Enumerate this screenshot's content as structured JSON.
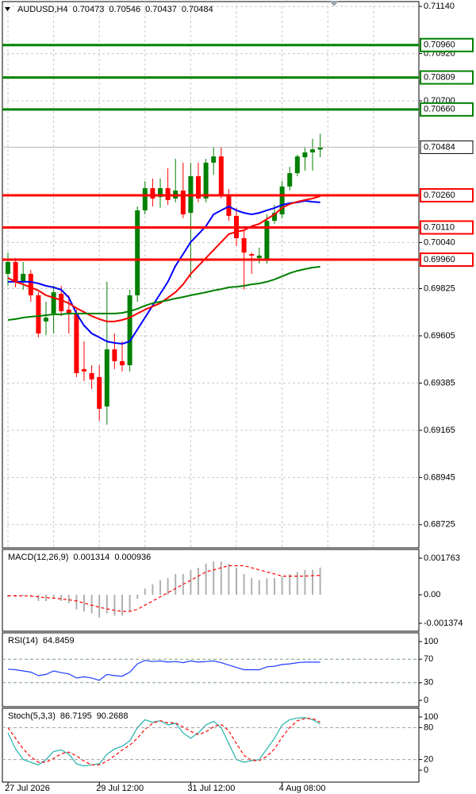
{
  "chart_data": [
    {
      "type": "candlestick",
      "title": "AUDUSD,H4",
      "categories": [
        "27 Jul 2026",
        null,
        null,
        null,
        null,
        null,
        null,
        null,
        null,
        null,
        null,
        null,
        "29 Jul 12:00",
        null,
        null,
        null,
        null,
        null,
        null,
        null,
        null,
        null,
        null,
        null,
        "31 Jul 12:00",
        null,
        null,
        null,
        null,
        null,
        null,
        null,
        null,
        null,
        null,
        null,
        "4 Aug 08:00",
        null,
        null,
        null,
        null,
        null
      ],
      "open": [
        0.69894,
        0.69949,
        0.69857,
        0.69894,
        0.69794,
        0.69672,
        0.69709,
        0.69801,
        0.69727,
        0.69709,
        0.6945,
        0.69431,
        0.69413,
        0.69276,
        0.69542,
        0.69487,
        0.69468,
        0.69794,
        0.7019,
        0.70293,
        0.70252,
        0.70293,
        0.70245,
        0.70282,
        0.70178,
        0.70349,
        0.70245,
        0.70412,
        0.70441,
        0.70264,
        0.70164,
        0.7006,
        0.69986,
        0.69968,
        0.69956,
        0.70141,
        0.70171,
        0.70301,
        0.70363,
        0.70437,
        0.7046,
        0.70473
      ],
      "high": [
        0.69993,
        0.69968,
        0.69949,
        0.69912,
        0.69808,
        0.69764,
        0.69838,
        0.69838,
        0.69794,
        0.69727,
        0.69579,
        0.69468,
        0.69468,
        0.69857,
        0.69616,
        0.69579,
        0.6982,
        0.70208,
        0.70326,
        0.70338,
        0.70338,
        0.70386,
        0.7043,
        0.70412,
        0.70412,
        0.70412,
        0.7043,
        0.70486,
        0.70486,
        0.70289,
        0.70201,
        0.70097,
        0.69993,
        0.70016,
        0.70171,
        0.70215,
        0.70326,
        0.70393,
        0.70449,
        0.70486,
        0.70523,
        0.70546
      ],
      "low": [
        0.69838,
        0.69831,
        0.6982,
        0.69764,
        0.69598,
        0.69609,
        0.69616,
        0.69697,
        0.69616,
        0.69413,
        0.69394,
        0.69357,
        0.69209,
        0.69191,
        0.6945,
        0.69439,
        0.69439,
        0.69764,
        0.70171,
        0.70208,
        0.70201,
        0.70215,
        0.70227,
        0.70153,
        0.69875,
        0.70227,
        0.70227,
        0.70356,
        0.70245,
        0.70141,
        0.70023,
        0.6982,
        0.69894,
        0.69942,
        0.69942,
        0.70127,
        0.70153,
        0.70282,
        0.70349,
        0.70375,
        0.70375,
        0.70437
      ],
      "close": [
        0.69949,
        0.69857,
        0.69894,
        0.69794,
        0.69616,
        0.6969,
        0.69808,
        0.6972,
        0.69709,
        0.69431,
        0.69439,
        0.69402,
        0.69265,
        0.69542,
        0.69487,
        0.69468,
        0.69794,
        0.7019,
        0.70293,
        0.70245,
        0.70293,
        0.70238,
        0.70282,
        0.70171,
        0.70349,
        0.70245,
        0.70412,
        0.70441,
        0.70264,
        0.70164,
        0.7006,
        0.69993,
        0.69979,
        0.69979,
        0.70141,
        0.70178,
        0.70301,
        0.70363,
        0.70441,
        0.7046,
        0.70474,
        0.70484
      ],
      "up_color": "#008000",
      "down_color": "#ff0000",
      "series": [
        {
          "kind": "line",
          "color": "#0000ff",
          "values": [
            0.69857,
            0.69857,
            0.69857,
            0.69857,
            0.69849,
            0.69838,
            0.69831,
            0.6982,
            0.69783,
            0.69709,
            0.69653,
            0.69616,
            0.69598,
            0.69579,
            0.69572,
            0.69568,
            0.69579,
            0.69635,
            0.6969,
            0.69746,
            0.69801,
            0.69857,
            0.69931,
            0.69986,
            0.70042,
            0.70079,
            0.70116,
            0.70171,
            0.7019,
            0.70208,
            0.7019,
            0.70178,
            0.70171,
            0.70178,
            0.7019,
            0.70201,
            0.70215,
            0.70223,
            0.70227,
            0.70234,
            0.7023,
            0.70227
          ]
        },
        {
          "kind": "line",
          "color": "#ff0000",
          "values": [
            0.69875,
            0.69857,
            0.69845,
            0.69831,
            0.69816,
            0.69794,
            0.69783,
            0.69771,
            0.69757,
            0.69734,
            0.69716,
            0.69697,
            0.69683,
            0.69672,
            0.69672,
            0.69679,
            0.6969,
            0.69709,
            0.69727,
            0.69742,
            0.69757,
            0.69783,
            0.69808,
            0.69845,
            0.69894,
            0.69931,
            0.69968,
            0.70005,
            0.70042,
            0.70079,
            0.7009,
            0.70097,
            0.70116,
            0.70127,
            0.70149,
            0.70171,
            0.70201,
            0.70219,
            0.7023,
            0.70238,
            0.70245,
            0.70256
          ]
        },
        {
          "kind": "line",
          "color": "#008000",
          "values": [
            0.69679,
            0.69683,
            0.6969,
            0.69694,
            0.69697,
            0.69701,
            0.69705,
            0.69705,
            0.69709,
            0.69709,
            0.69709,
            0.69709,
            0.69709,
            0.69709,
            0.69709,
            0.69712,
            0.6972,
            0.69731,
            0.69746,
            0.69757,
            0.69764,
            0.69771,
            0.69779,
            0.69786,
            0.69794,
            0.69801,
            0.69808,
            0.69816,
            0.69823,
            0.69831,
            0.69834,
            0.69838,
            0.69845,
            0.69849,
            0.69857,
            0.69868,
            0.69882,
            0.69897,
            0.69908,
            0.69916,
            0.69923,
            0.69927
          ]
        }
      ],
      "ylim": [
        0.68617,
        0.7117
      ],
      "yticks": [
        {
          "value": 0.7114,
          "label": "0.71140"
        },
        {
          "value": 0.7092,
          "label": "0.70920"
        },
        {
          "value": 0.707,
          "label": "0.70700"
        },
        {
          "value": 0.7004,
          "label": "0.70040"
        },
        0.69825,
        0.69605,
        0.69385,
        0.69165,
        0.68945,
        0.68725
      ],
      "grid": true,
      "levels": [
        {
          "value": 0.7096,
          "label": "0.70960"
        },
        0.70809,
        {
          "value": 0.7066,
          "label": "0.70660"
        },
        {
          "value": 0.7026,
          "label": "0.70260"
        },
        {
          "value": 0.7011,
          "label": "0.70110"
        },
        {
          "value": 0.6996,
          "label": "0.69960"
        }
      ],
      "level_colors": [
        "#008000",
        "#008000",
        "#008000",
        "#ff0000",
        "#ff0000",
        "#ff0000"
      ],
      "level_style": "solid",
      "level_boxes": true,
      "show_last_price": true
    },
    {
      "type": "macd",
      "title": "MACD(12,26,9)",
      "series": [
        {
          "kind": "histogram",
          "color": "#b0b0b0",
          "values": [
            -0.0001,
            -0.0001,
            -5e-05,
            -0.0001,
            -0.0003,
            -0.0003,
            -0.0002,
            -0.0003,
            -0.0004,
            -0.0007,
            -0.0008,
            -0.0009,
            -0.0011,
            -0.0009,
            -0.001,
            -0.001,
            -0.0008,
            -0.0002,
            0.0003,
            0.0005,
            0.0007,
            0.0008,
            0.001,
            0.001,
            0.0012,
            0.0013,
            0.0015,
            0.0016,
            0.0016,
            0.0015,
            0.0013,
            0.001,
            0.0008,
            0.0007,
            0.0008,
            0.0008,
            0.0009,
            0.001,
            0.0011,
            0.0012,
            0.0012,
            0.001314
          ]
        },
        {
          "kind": "line",
          "color": "#ff0000",
          "style": "dashed",
          "values": [
            -5e-05,
            -5e-05,
            -5e-05,
            -6e-05,
            -0.0001,
            -0.00014,
            -0.00016,
            -0.0002,
            -0.00024,
            -0.0003,
            -0.0004,
            -0.0005,
            -0.0006,
            -0.00068,
            -0.00075,
            -0.0008,
            -0.0008,
            -0.0007,
            -0.0005,
            -0.0003,
            -0.0001,
            0.0001,
            0.0003,
            0.0005,
            0.0007,
            0.0009,
            0.0011,
            0.0012,
            0.0013,
            0.0014,
            0.0014,
            0.0014,
            0.0013,
            0.0012,
            0.0011,
            0.001,
            0.0009,
            0.0009,
            0.0009,
            0.0009,
            0.00092,
            0.000936
          ]
        }
      ],
      "ylim": [
        -0.001374,
        0.001763
      ],
      "yticks": [
        0.001763,
        {
          "value": 0,
          "label": "0.00"
        },
        -0.001374
      ]
    },
    {
      "type": "line",
      "title": "RSI(14)",
      "series": [
        {
          "kind": "line",
          "color": "#1e3cff",
          "values": [
            53,
            52,
            50,
            48,
            42,
            44,
            50,
            47,
            45,
            38,
            40,
            38,
            34,
            44,
            42,
            41,
            48,
            62,
            68,
            66,
            67,
            65,
            66,
            64,
            67,
            65,
            66,
            67,
            64,
            60,
            56,
            52,
            52,
            52,
            57,
            58,
            61,
            62,
            64,
            65,
            65,
            64.8459
          ]
        }
      ],
      "ylim": [
        0,
        100
      ],
      "yticks": [
        100,
        70,
        30,
        0
      ],
      "levels": [
        70,
        30
      ],
      "level_colors": [
        "#7fa07f",
        "#7fa07f"
      ],
      "level_style": "dashed"
    },
    {
      "type": "line",
      "title": "Stoch(5,3,3)",
      "series": [
        {
          "kind": "line",
          "color": "#20b2aa",
          "values": [
            70,
            40,
            20,
            15,
            10,
            20,
            35,
            38,
            30,
            12,
            8,
            10,
            12,
            30,
            40,
            45,
            55,
            80,
            95,
            90,
            93,
            85,
            88,
            70,
            60,
            70,
            85,
            92,
            80,
            50,
            20,
            15,
            18,
            20,
            40,
            60,
            85,
            95,
            98,
            99,
            95,
            86.7195
          ]
        },
        {
          "kind": "line",
          "color": "#ff0000",
          "style": "dashed",
          "values": [
            80,
            60,
            40,
            25,
            15,
            15,
            22,
            31,
            34,
            27,
            17,
            10,
            10,
            17,
            27,
            38,
            47,
            60,
            77,
            88,
            93,
            89,
            89,
            81,
            73,
            67,
            72,
            82,
            86,
            74,
            50,
            28,
            18,
            18,
            26,
            40,
            62,
            80,
            93,
            97,
            97,
            90.2688
          ]
        }
      ],
      "ylim": [
        0,
        100
      ],
      "yticks": [
        100,
        80,
        20,
        0
      ],
      "levels": [
        80,
        20
      ],
      "level_colors": [
        "#a0a0a0",
        "#a0a0a0"
      ],
      "level_style": "dashed"
    }
  ]
}
